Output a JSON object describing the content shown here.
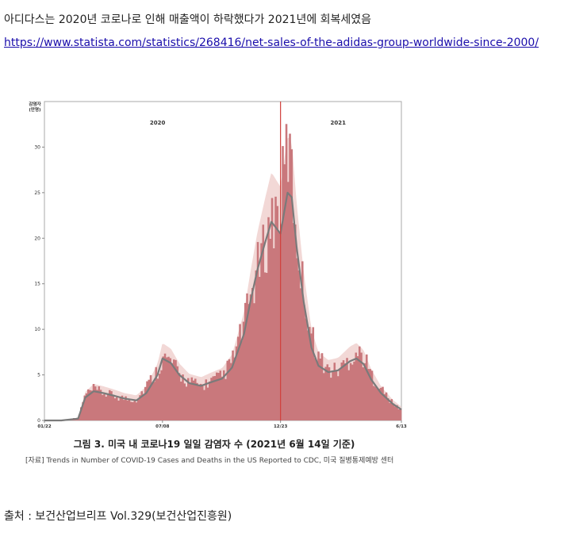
{
  "header": {
    "title": "아디다스는 2020년 코로나로 인해 매출액이 하락했다가 2021년에 회복세였음",
    "link": "https://www.statista.com/statistics/268416/net-sales-of-the-adidas-group-worldwide-since-2000/"
  },
  "figure": {
    "caption": "그림 3. 미국 내 코로나19 일일 감염자 수 (2021년 6월 14일 기준)",
    "source_note": "[자료] Trends in Number of COVID-19 Cases and Deaths in the US Reported to CDC, 미국 질병통제예방 센터"
  },
  "footer": {
    "credit": "출처 : 보건산업브리프 Vol.329(보건산업진흥원)"
  },
  "chart_data": {
    "type": "bar",
    "ylabel_lines": [
      "감염자",
      "(만명)"
    ],
    "ylim": [
      0,
      35
    ],
    "yticks": [
      0,
      5,
      10,
      15,
      20,
      25,
      30
    ],
    "xticks": [
      "01/22",
      "07/08",
      "12/23",
      "6/13"
    ],
    "year_labels": [
      "2020",
      "2021"
    ],
    "colors": {
      "bars": "#c9787c",
      "band": "#f2d8d6",
      "avg_line": "#7a7a7a",
      "marker": "#d0403c"
    },
    "x": [
      "2020-01-22",
      "2020-02-15",
      "2020-03-10",
      "2020-03-20",
      "2020-04-01",
      "2020-04-15",
      "2020-05-01",
      "2020-05-15",
      "2020-06-01",
      "2020-06-15",
      "2020-07-01",
      "2020-07-08",
      "2020-07-20",
      "2020-08-01",
      "2020-08-15",
      "2020-09-01",
      "2020-09-15",
      "2020-10-01",
      "2020-10-15",
      "2020-11-01",
      "2020-11-10",
      "2020-11-20",
      "2020-12-01",
      "2020-12-10",
      "2020-12-23",
      "2021-01-02",
      "2021-01-08",
      "2021-01-15",
      "2021-01-25",
      "2021-02-05",
      "2021-02-15",
      "2021-03-01",
      "2021-03-15",
      "2021-04-01",
      "2021-04-10",
      "2021-04-20",
      "2021-05-01",
      "2021-05-15",
      "2021-06-01",
      "2021-06-13"
    ],
    "series": [
      {
        "values": [
          0,
          0,
          0.3,
          2.8,
          3.4,
          3.0,
          2.7,
          2.4,
          2.3,
          3.8,
          5.5,
          6.8,
          6.5,
          5.0,
          4.2,
          3.8,
          4.3,
          4.8,
          6.5,
          10.5,
          13.5,
          16.5,
          19.0,
          22.0,
          23.5,
          30.5,
          26.5,
          20.0,
          14.0,
          9.5,
          7.0,
          5.5,
          5.5,
          6.8,
          7.5,
          7.0,
          5.0,
          3.5,
          1.8,
          1.2
        ]
      },
      {
        "values": [
          0,
          0,
          0.2,
          2.5,
          3.2,
          3.0,
          2.7,
          2.4,
          2.2,
          3.0,
          5.0,
          6.8,
          6.3,
          5.0,
          4.1,
          3.8,
          4.2,
          4.6,
          5.8,
          9.5,
          13.0,
          16.5,
          19.5,
          21.8,
          20.5,
          25.0,
          24.5,
          19.0,
          13.0,
          8.0,
          6.0,
          5.3,
          5.5,
          6.5,
          6.8,
          6.2,
          4.5,
          3.0,
          1.8,
          1.2
        ]
      }
    ],
    "marker_date": "2020-12-23"
  }
}
